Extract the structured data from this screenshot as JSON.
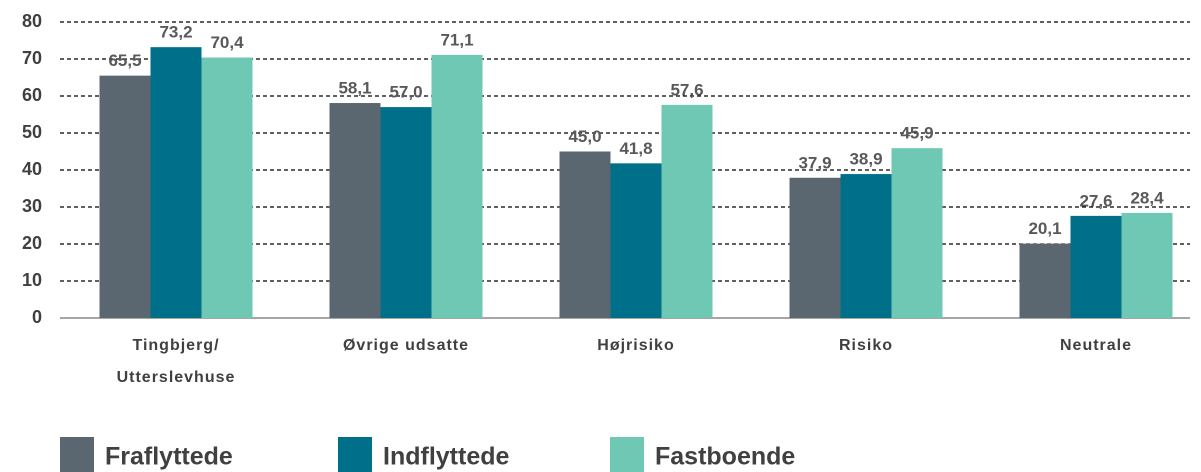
{
  "chart_data": {
    "type": "bar",
    "categories": [
      "Tingbjerg/ Utterslevhuse",
      "Øvrige udsatte",
      "Højrisiko",
      "Risiko",
      "Neutrale"
    ],
    "series": [
      {
        "name": "Fraflyttede",
        "color": "#5b6770",
        "values": [
          65.5,
          58.1,
          45.0,
          37.9,
          20.1
        ],
        "value_labels": [
          "65,5",
          "58,1",
          "45,0",
          "37,9",
          "20,1"
        ]
      },
      {
        "name": "Indflyttede",
        "color": "#006f8a",
        "values": [
          73.2,
          57.0,
          41.8,
          38.9,
          27.6
        ],
        "value_labels": [
          "73,2",
          "57,0",
          "41,8",
          "38,9",
          "27,6"
        ]
      },
      {
        "name": "Fastboende",
        "color": "#6fc8b4",
        "values": [
          70.4,
          71.1,
          57.6,
          45.9,
          28.4
        ],
        "value_labels": [
          "70,4",
          "71,1",
          "57,6",
          "45,9",
          "28,4"
        ]
      }
    ],
    "ylim": [
      0,
      80
    ],
    "yticks": [
      0,
      10,
      20,
      30,
      40,
      50,
      60,
      70,
      80
    ],
    "grid": true,
    "legend": "bottom"
  }
}
